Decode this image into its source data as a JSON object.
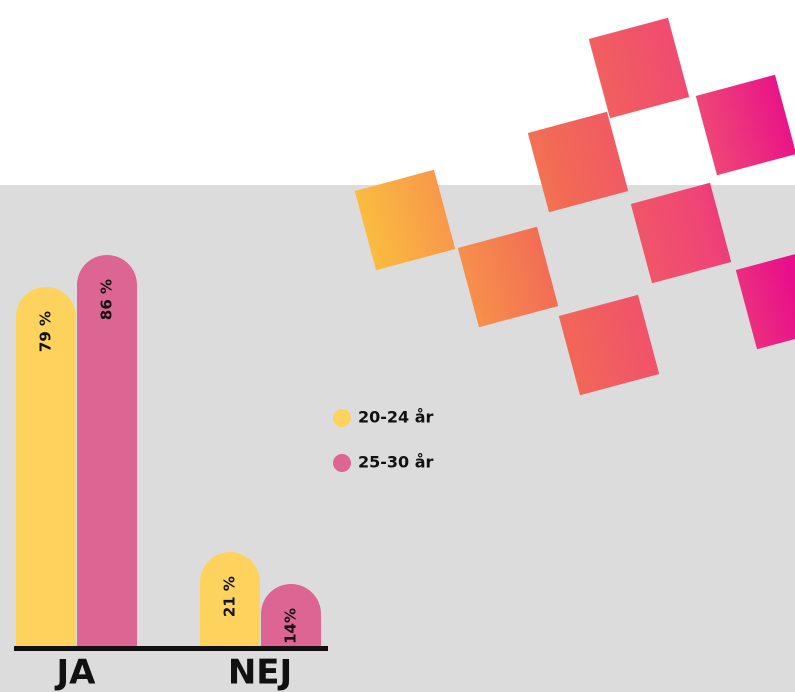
{
  "chart_data": {
    "type": "bar",
    "categories": [
      "JA",
      "NEJ"
    ],
    "series": [
      {
        "name": "20-24 år",
        "color": "#fdd35e",
        "values": [
          79,
          21
        ],
        "value_labels": [
          "79 %",
          "21 %"
        ]
      },
      {
        "name": "25-30 år",
        "color": "#dc6593",
        "values": [
          86,
          14
        ],
        "value_labels": [
          "86 %",
          "14%"
        ]
      }
    ],
    "ylim": [
      0,
      100
    ]
  }
}
